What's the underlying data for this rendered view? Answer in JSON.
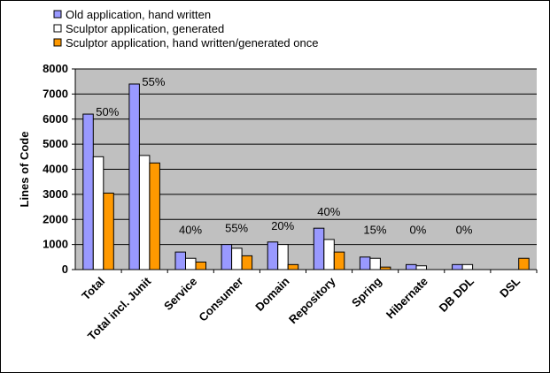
{
  "chart_data": {
    "type": "bar",
    "title": "",
    "xlabel": "",
    "ylabel": "Lines of Code",
    "ylim": [
      0,
      8000
    ],
    "yticks": [
      0,
      1000,
      2000,
      3000,
      4000,
      5000,
      6000,
      7000,
      8000
    ],
    "grid": true,
    "legend_position": "top-left",
    "plot_background": "#C0C0C0",
    "categories": [
      "Total",
      "Total incl. Junit",
      "Service",
      "Consumer",
      "Domain",
      "Repository",
      "Spring",
      "Hibernate",
      "DB DDL",
      "DSL"
    ],
    "series": [
      {
        "name": "Old application, hand written",
        "color": "#9999FF",
        "values": [
          6200,
          7400,
          700,
          1000,
          1100,
          1650,
          500,
          200,
          200,
          0
        ]
      },
      {
        "name": "Sculptor application, generated",
        "color": "#FFFFFF",
        "values": [
          4500,
          4550,
          450,
          850,
          1000,
          1200,
          450,
          150,
          200,
          0
        ]
      },
      {
        "name": "Sculptor application, hand written/generated once",
        "color": "#FF9900",
        "values": [
          3050,
          4250,
          300,
          550,
          200,
          700,
          100,
          0,
          0,
          450
        ]
      }
    ],
    "annotations": [
      {
        "category": "Total",
        "text": "50%"
      },
      {
        "category": "Total incl. Junit",
        "text": "55%"
      },
      {
        "category": "Service",
        "text": "40%"
      },
      {
        "category": "Consumer",
        "text": "55%"
      },
      {
        "category": "Domain",
        "text": "20%"
      },
      {
        "category": "Repository",
        "text": "40%"
      },
      {
        "category": "Spring",
        "text": "15%"
      },
      {
        "category": "Hibernate",
        "text": "0%"
      },
      {
        "category": "DB DDL",
        "text": "0%"
      }
    ]
  }
}
